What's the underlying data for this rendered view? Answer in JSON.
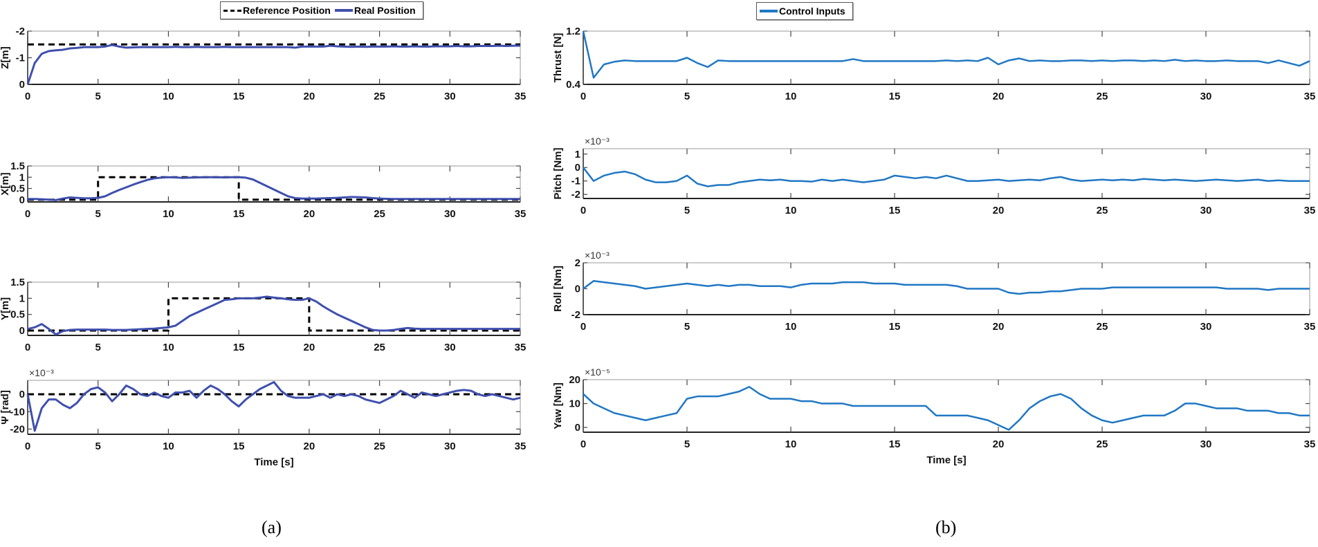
{
  "caption_a": "(a)",
  "caption_b": "(b)",
  "legend_a": [
    {
      "label": "Reference Position",
      "style": "dashed",
      "color": "#000000"
    },
    {
      "label": "Real Position",
      "style": "solid",
      "color": "#3f4fae"
    }
  ],
  "legend_b": [
    {
      "label": "Control Inputs",
      "style": "solid",
      "color": "#1f77c4"
    }
  ],
  "chart_data": [
    {
      "type": "line",
      "panel": "a",
      "ylabel": "Z[m]",
      "xlabel": "",
      "xlim": [
        0,
        35
      ],
      "ylim": [
        0,
        -2
      ],
      "y_reversed": true,
      "xticks": [
        "0",
        "5",
        "10",
        "15",
        "20",
        "25",
        "30",
        "35"
      ],
      "yticks": [
        {
          "v": -2,
          "label": "-2"
        },
        {
          "v": -1,
          "label": "-1"
        },
        {
          "v": 0,
          "label": "0"
        }
      ],
      "multiplier": "",
      "series": [
        {
          "name": "Reference Position",
          "step": [
            [
              0,
              -1.5
            ],
            [
              35,
              -1.5
            ]
          ]
        },
        {
          "name": "Real Position",
          "values": [
            0,
            -0.8,
            -1.15,
            -1.25,
            -1.28,
            -1.3,
            -1.35,
            -1.37,
            -1.4,
            -1.4,
            -1.4,
            -1.42,
            -1.48,
            -1.42,
            -1.38,
            -1.39,
            -1.4,
            -1.4,
            -1.4,
            -1.4,
            -1.4,
            -1.41,
            -1.4,
            -1.4,
            -1.41,
            -1.4,
            -1.4,
            -1.4,
            -1.41,
            -1.4,
            -1.4,
            -1.4,
            -1.4,
            -1.4,
            -1.4,
            -1.4,
            -1.4,
            -1.4,
            -1.38,
            -1.42,
            -1.42,
            -1.42,
            -1.42,
            -1.45,
            -1.43,
            -1.42,
            -1.41,
            -1.42,
            -1.41,
            -1.42,
            -1.42,
            -1.42,
            -1.43,
            -1.42,
            -1.42,
            -1.43,
            -1.42,
            -1.42,
            -1.43,
            -1.43,
            -1.43,
            -1.44,
            -1.43,
            -1.43,
            -1.44,
            -1.44,
            -1.44,
            -1.45,
            -1.44,
            -1.45,
            -1.45
          ]
        }
      ]
    },
    {
      "type": "line",
      "panel": "a",
      "ylabel": "X[m]",
      "xlabel": "",
      "xlim": [
        0,
        35
      ],
      "ylim": [
        -0.1,
        1.5
      ],
      "xticks": [
        "0",
        "5",
        "10",
        "15",
        "20",
        "25",
        "30",
        "35"
      ],
      "yticks": [
        {
          "v": 1.5,
          "label": "1.5"
        },
        {
          "v": 1,
          "label": "1"
        },
        {
          "v": 0.5,
          "label": "0.5"
        },
        {
          "v": 0,
          "label": "0"
        }
      ],
      "multiplier": "",
      "series": [
        {
          "name": "Reference Position",
          "step": [
            [
              0,
              0
            ],
            [
              5,
              0
            ],
            [
              5,
              1
            ],
            [
              15,
              1
            ],
            [
              15,
              0
            ],
            [
              35,
              0
            ]
          ]
        },
        {
          "name": "Real Position",
          "values": [
            0.03,
            0.03,
            0.02,
            0.0,
            -0.02,
            0.05,
            0.1,
            0.08,
            0.06,
            0.06,
            0.08,
            0.15,
            0.3,
            0.43,
            0.55,
            0.67,
            0.78,
            0.88,
            0.95,
            0.98,
            1.0,
            0.99,
            0.97,
            0.98,
            0.99,
            1.0,
            1.0,
            1.0,
            0.99,
            1.0,
            1.0,
            0.98,
            0.9,
            0.75,
            0.6,
            0.45,
            0.3,
            0.15,
            0.07,
            0.05,
            0.05,
            0.05,
            0.06,
            0.07,
            0.08,
            0.1,
            0.12,
            0.11,
            0.1,
            0.07,
            0.05,
            0.04,
            0.03,
            0.03,
            0.03,
            0.03,
            0.03,
            0.03,
            0.03,
            0.03,
            0.03,
            0.03,
            0.03,
            0.03,
            0.03,
            0.03,
            0.03,
            0.03,
            0.03,
            0.03,
            0.03
          ]
        }
      ]
    },
    {
      "type": "line",
      "panel": "a",
      "ylabel": "Y[m]",
      "xlabel": "",
      "xlim": [
        0,
        35
      ],
      "ylim": [
        -0.15,
        1.5
      ],
      "xticks": [
        "0",
        "5",
        "10",
        "15",
        "20",
        "25",
        "30",
        "35"
      ],
      "yticks": [
        {
          "v": 1.5,
          "label": "1.5"
        },
        {
          "v": 1,
          "label": "1"
        },
        {
          "v": 0.5,
          "label": "0.5"
        },
        {
          "v": 0,
          "label": "0"
        }
      ],
      "multiplier": "",
      "series": [
        {
          "name": "Reference Position",
          "step": [
            [
              0,
              0
            ],
            [
              10,
              0
            ],
            [
              10,
              1
            ],
            [
              20,
              1
            ],
            [
              20,
              0
            ],
            [
              35,
              0
            ]
          ]
        },
        {
          "name": "Real Position",
          "values": [
            0.05,
            0.1,
            0.2,
            0.05,
            -0.12,
            -0.02,
            0.02,
            0.03,
            0.03,
            0.03,
            0.03,
            0.03,
            0.02,
            0.02,
            0.02,
            0.03,
            0.04,
            0.05,
            0.06,
            0.08,
            0.1,
            0.15,
            0.3,
            0.45,
            0.55,
            0.65,
            0.75,
            0.85,
            0.95,
            0.97,
            1.0,
            1.0,
            1.0,
            1.02,
            1.05,
            1.02,
            1.0,
            0.97,
            0.95,
            0.95,
            1.0,
            0.9,
            0.75,
            0.62,
            0.5,
            0.4,
            0.3,
            0.2,
            0.1,
            0.02,
            0.0,
            0.0,
            0.02,
            0.05,
            0.08,
            0.06,
            0.05,
            0.05,
            0.05,
            0.05,
            0.05,
            0.05,
            0.05,
            0.05,
            0.05,
            0.05,
            0.05,
            0.05,
            0.05,
            0.05,
            0.05
          ]
        }
      ]
    },
    {
      "type": "line",
      "panel": "a",
      "ylabel": "Ψ [rad]",
      "xlabel": "Time [s]",
      "xlim": [
        0,
        35
      ],
      "ylim": [
        -23,
        8
      ],
      "xticks": [
        "0",
        "5",
        "10",
        "15",
        "20",
        "25",
        "30",
        "35"
      ],
      "yticks": [
        {
          "v": 0,
          "label": "0"
        },
        {
          "v": -10,
          "label": "-10"
        },
        {
          "v": -20,
          "label": "-20"
        }
      ],
      "multiplier": "×10⁻³",
      "series": [
        {
          "name": "Reference Position",
          "step": [
            [
              0,
              0
            ],
            [
              35,
              0
            ]
          ]
        },
        {
          "name": "Real Position",
          "values": [
            0,
            -21,
            -8,
            -3,
            -3,
            -6,
            -8,
            -5,
            0,
            3,
            4,
            1,
            -4,
            0,
            5,
            3,
            0,
            -1,
            1,
            -1,
            -2,
            1,
            1,
            2,
            -2,
            2,
            5,
            3,
            0,
            -4,
            -7,
            -3,
            0,
            3,
            5,
            7,
            2,
            -1,
            -2,
            -2,
            -2,
            -1,
            0,
            -2,
            0,
            -1,
            0,
            -1,
            -3,
            -4,
            -5,
            -3,
            -1,
            2,
            0,
            -2,
            1,
            0,
            -1,
            0,
            1,
            2,
            2.5,
            2,
            0,
            -1,
            0,
            -1,
            -2,
            -3,
            -2
          ]
        }
      ]
    },
    {
      "type": "line",
      "panel": "b",
      "ylabel": "Thrust [N]",
      "xlabel": "",
      "xlim": [
        0,
        35
      ],
      "ylim": [
        0.4,
        1.2
      ],
      "xticks": [
        "0",
        "5",
        "10",
        "15",
        "20",
        "25",
        "30",
        "35"
      ],
      "yticks": [
        {
          "v": 1.2,
          "label": "1.2"
        },
        {
          "v": 0.4,
          "label": "0.4"
        }
      ],
      "multiplier": "",
      "series": [
        {
          "name": "Control Inputs",
          "values": [
            1.2,
            0.5,
            0.7,
            0.74,
            0.76,
            0.75,
            0.75,
            0.75,
            0.75,
            0.75,
            0.8,
            0.72,
            0.66,
            0.76,
            0.75,
            0.75,
            0.75,
            0.75,
            0.75,
            0.75,
            0.75,
            0.75,
            0.75,
            0.75,
            0.75,
            0.75,
            0.78,
            0.75,
            0.75,
            0.75,
            0.75,
            0.75,
            0.75,
            0.75,
            0.75,
            0.76,
            0.75,
            0.76,
            0.75,
            0.8,
            0.7,
            0.76,
            0.79,
            0.75,
            0.76,
            0.75,
            0.75,
            0.76,
            0.76,
            0.75,
            0.76,
            0.75,
            0.76,
            0.76,
            0.75,
            0.76,
            0.75,
            0.77,
            0.75,
            0.76,
            0.75,
            0.75,
            0.76,
            0.75,
            0.75,
            0.75,
            0.72,
            0.76,
            0.72,
            0.68,
            0.75
          ]
        }
      ]
    },
    {
      "type": "line",
      "panel": "b",
      "ylabel": "Pitch [Nm]",
      "xlabel": "",
      "xlim": [
        0,
        35
      ],
      "ylim": [
        -2.3,
        1.4
      ],
      "xticks": [
        "0",
        "5",
        "10",
        "15",
        "20",
        "25",
        "30",
        "35"
      ],
      "yticks": [
        {
          "v": 1,
          "label": "1"
        },
        {
          "v": 0,
          "label": "0"
        },
        {
          "v": -1,
          "label": "-1"
        },
        {
          "v": -2,
          "label": "-2"
        }
      ],
      "multiplier": "×10⁻³",
      "series": [
        {
          "name": "Control Inputs",
          "values": [
            0,
            -1,
            -0.6,
            -0.4,
            -0.3,
            -0.5,
            -0.9,
            -1.1,
            -1.1,
            -1.0,
            -0.6,
            -1.2,
            -1.4,
            -1.3,
            -1.3,
            -1.1,
            -1.0,
            -0.9,
            -0.95,
            -0.9,
            -1.0,
            -1.0,
            -1.05,
            -0.9,
            -1.0,
            -0.9,
            -1.0,
            -1.1,
            -1.0,
            -0.9,
            -0.6,
            -0.7,
            -0.8,
            -0.7,
            -0.8,
            -0.6,
            -0.8,
            -1.0,
            -1.0,
            -0.95,
            -0.9,
            -1.0,
            -0.95,
            -0.9,
            -0.95,
            -0.8,
            -0.7,
            -0.9,
            -1.0,
            -0.95,
            -0.9,
            -0.95,
            -0.9,
            -0.95,
            -0.85,
            -0.9,
            -0.95,
            -0.9,
            -0.95,
            -1.0,
            -0.95,
            -0.9,
            -0.95,
            -1.0,
            -0.95,
            -0.9,
            -1.0,
            -0.95,
            -1.0,
            -1.0,
            -1.0
          ]
        }
      ]
    },
    {
      "type": "line",
      "panel": "b",
      "ylabel": "Roll [Nm]",
      "xlabel": "",
      "xlim": [
        0,
        35
      ],
      "ylim": [
        -2,
        2
      ],
      "xticks": [
        "0",
        "5",
        "10",
        "15",
        "20",
        "25",
        "30",
        "35"
      ],
      "yticks": [
        {
          "v": 2,
          "label": "2"
        },
        {
          "v": 0,
          "label": "0"
        },
        {
          "v": -2,
          "label": "-2"
        }
      ],
      "multiplier": "×10⁻³",
      "series": [
        {
          "name": "Control Inputs",
          "values": [
            0,
            0.6,
            0.5,
            0.4,
            0.3,
            0.2,
            0,
            0.1,
            0.2,
            0.3,
            0.4,
            0.3,
            0.2,
            0.3,
            0.2,
            0.3,
            0.3,
            0.2,
            0.2,
            0.2,
            0.1,
            0.3,
            0.4,
            0.4,
            0.4,
            0.5,
            0.5,
            0.5,
            0.4,
            0.4,
            0.4,
            0.3,
            0.3,
            0.3,
            0.3,
            0.3,
            0.2,
            0,
            0,
            0,
            0,
            -0.3,
            -0.4,
            -0.3,
            -0.3,
            -0.2,
            -0.2,
            -0.1,
            0,
            0,
            0,
            0.1,
            0.1,
            0.1,
            0.1,
            0.1,
            0.1,
            0.1,
            0.1,
            0.1,
            0.1,
            0.1,
            0,
            0,
            0,
            0,
            -0.1,
            0,
            0,
            0,
            0
          ]
        }
      ]
    },
    {
      "type": "line",
      "panel": "b",
      "ylabel": "Yaw [Nm]",
      "xlabel": "Time [s]",
      "xlim": [
        0,
        35
      ],
      "ylim": [
        -2,
        20
      ],
      "xticks": [
        "0",
        "5",
        "10",
        "15",
        "20",
        "25",
        "30",
        "35"
      ],
      "yticks": [
        {
          "v": 20,
          "label": "20"
        },
        {
          "v": 10,
          "label": "10"
        },
        {
          "v": 0,
          "label": "0"
        }
      ],
      "multiplier": "×10⁻⁵",
      "series": [
        {
          "name": "Control Inputs",
          "values": [
            14,
            10,
            8,
            6,
            5,
            4,
            3,
            4,
            5,
            6,
            12,
            13,
            13,
            13,
            14,
            15,
            17,
            14,
            12,
            12,
            12,
            11,
            11,
            10,
            10,
            10,
            9,
            9,
            9,
            9,
            9,
            9,
            9,
            9,
            5,
            5,
            5,
            5,
            4,
            3,
            1,
            -1,
            3,
            8,
            11,
            13,
            14,
            12,
            8,
            5,
            3,
            2,
            3,
            4,
            5,
            5,
            5,
            7,
            10,
            10,
            9,
            8,
            8,
            8,
            7,
            7,
            7,
            6,
            6,
            5,
            5
          ]
        }
      ]
    }
  ],
  "x_values": [
    0,
    0.5,
    1,
    1.5,
    2,
    2.5,
    3,
    3.5,
    4,
    4.5,
    5,
    5.5,
    6,
    6.5,
    7,
    7.5,
    8,
    8.5,
    9,
    9.5,
    10,
    10.5,
    11,
    11.5,
    12,
    12.5,
    13,
    13.5,
    14,
    14.5,
    15,
    15.5,
    16,
    16.5,
    17,
    17.5,
    18,
    18.5,
    19,
    19.5,
    20,
    20.5,
    21,
    21.5,
    22,
    22.5,
    23,
    23.5,
    24,
    24.5,
    25,
    25.5,
    26,
    26.5,
    27,
    27.5,
    28,
    28.5,
    29,
    29.5,
    30,
    30.5,
    31,
    31.5,
    32,
    32.5,
    33,
    33.5,
    34,
    34.5,
    35
  ],
  "colors": {
    "real": "#3f4fae",
    "reference": "#000000",
    "control": "#1f77c4",
    "axis": "#333333",
    "grid_tick": "#444444"
  }
}
